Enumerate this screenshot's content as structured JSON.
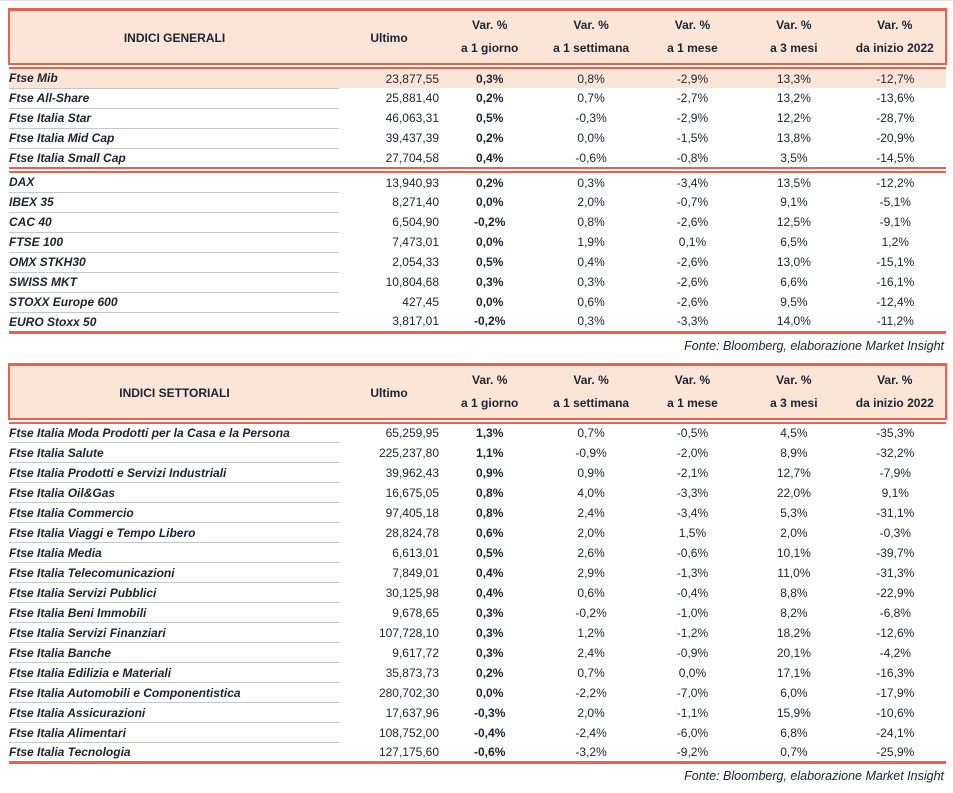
{
  "columns": {
    "ultimo": "Ultimo",
    "var_label": "Var. %",
    "periods": [
      "a 1 giorno",
      "a 1 settimana",
      "a 1 mese",
      "a 3 mesi",
      "da inizio 2022"
    ]
  },
  "footer": {
    "text": "Fonte: Bloomberg, elaborazione Market Insight"
  },
  "colors": {
    "accent_salmon": "#ec614b",
    "header_peach": "#fbe5d6",
    "text_dark": "#1c2431",
    "row_divider_gray": "#c6c6c6"
  },
  "tables": [
    {
      "title": "INDICI GENERALI",
      "highlight_first_row": true,
      "groups": [
        {
          "rows": [
            [
              "Ftse Mib",
              "23,877,55",
              "0,3%",
              "0,8%",
              "-2,9%",
              "13,3%",
              "-12,7%"
            ],
            [
              "Ftse All-Share",
              "25,881,40",
              "0,2%",
              "0,7%",
              "-2,7%",
              "13,2%",
              "-13,6%"
            ],
            [
              "Ftse Italia Star",
              "46,063,31",
              "0,5%",
              "-0,3%",
              "-2,9%",
              "12,2%",
              "-28,7%"
            ],
            [
              "Ftse Italia Mid Cap",
              "39,437,39",
              "0,2%",
              "0,0%",
              "-1,5%",
              "13,8%",
              "-20,9%"
            ],
            [
              "Ftse Italia Small Cap",
              "27,704,58",
              "0,4%",
              "-0,6%",
              "-0,8%",
              "3,5%",
              "-14,5%"
            ]
          ]
        },
        {
          "rows": [
            [
              "DAX",
              "13,940,93",
              "0,2%",
              "0,3%",
              "-3,4%",
              "13,5%",
              "-12,2%"
            ],
            [
              "IBEX 35",
              "8,271,40",
              "0,0%",
              "2,0%",
              "-0,7%",
              "9,1%",
              "-5,1%"
            ],
            [
              "CAC 40",
              "6,504,90",
              "-0,2%",
              "0,8%",
              "-2,6%",
              "12,5%",
              "-9,1%"
            ],
            [
              "FTSE 100",
              "7,473,01",
              "0,0%",
              "1,9%",
              "0,1%",
              "6,5%",
              "1,2%"
            ],
            [
              "OMX STKH30",
              "2,054,33",
              "0,5%",
              "0,4%",
              "-2,6%",
              "13,0%",
              "-15,1%"
            ],
            [
              "SWISS MKT",
              "10,804,68",
              "0,3%",
              "0,3%",
              "-2,6%",
              "6,6%",
              "-16,1%"
            ],
            [
              "STOXX Europe 600",
              "427,45",
              "0,0%",
              "0,6%",
              "-2,6%",
              "9,5%",
              "-12,4%"
            ],
            [
              "EURO Stoxx 50",
              "3,817,01",
              "-0,2%",
              "0,3%",
              "-3,3%",
              "14,0%",
              "-11,2%"
            ]
          ]
        }
      ]
    },
    {
      "title": "INDICI SETTORIALI",
      "highlight_first_row": false,
      "groups": [
        {
          "rows": [
            [
              "Ftse Italia Moda Prodotti per la Casa e la Persona",
              "65,259,95",
              "1,3%",
              "0,7%",
              "-0,5%",
              "4,5%",
              "-35,3%"
            ],
            [
              "Ftse Italia Salute",
              "225,237,80",
              "1,1%",
              "-0,9%",
              "-2,0%",
              "8,9%",
              "-32,2%"
            ],
            [
              "Ftse Italia Prodotti e Servizi Industriali",
              "39,962,43",
              "0,9%",
              "0,9%",
              "-2,1%",
              "12,7%",
              "-7,9%"
            ],
            [
              "Ftse Italia Oil&Gas",
              "16,675,05",
              "0,8%",
              "4,0%",
              "-3,3%",
              "22,0%",
              "9,1%"
            ],
            [
              "Ftse Italia Commercio",
              "97,405,18",
              "0,8%",
              "2,4%",
              "-3,4%",
              "5,3%",
              "-31,1%"
            ],
            [
              "Ftse Italia Viaggi e Tempo Libero",
              "28,824,78",
              "0,6%",
              "2,0%",
              "1,5%",
              "2,0%",
              "-0,3%"
            ],
            [
              "Ftse Italia Media",
              "6,613,01",
              "0,5%",
              "2,6%",
              "-0,6%",
              "10,1%",
              "-39,7%"
            ],
            [
              "Ftse Italia Telecomunicazioni",
              "7,849,01",
              "0,4%",
              "2,9%",
              "-1,3%",
              "11,0%",
              "-31,3%"
            ],
            [
              "Ftse Italia Servizi Pubblici",
              "30,125,98",
              "0,4%",
              "0,6%",
              "-0,4%",
              "8,8%",
              "-22,9%"
            ],
            [
              "Ftse Italia Beni Immobili",
              "9,678,65",
              "0,3%",
              "-0,2%",
              "-1,0%",
              "8,2%",
              "-6,8%"
            ],
            [
              "Ftse Italia Servizi Finanziari",
              "107,728,10",
              "0,3%",
              "1,2%",
              "-1,2%",
              "18,2%",
              "-12,6%"
            ],
            [
              "Ftse Italia Banche",
              "9,617,72",
              "0,3%",
              "2,4%",
              "-0,9%",
              "20,1%",
              "-4,2%"
            ],
            [
              "Ftse Italia Edilizia e Materiali",
              "35,873,73",
              "0,2%",
              "0,7%",
              "0,0%",
              "17,1%",
              "-16,3%"
            ],
            [
              "Ftse Italia Automobili e Componentistica",
              "280,702,30",
              "0,0%",
              "-2,2%",
              "-7,0%",
              "6,0%",
              "-17,9%"
            ],
            [
              "Ftse Italia Assicurazioni",
              "17,637,96",
              "-0,3%",
              "2,0%",
              "-1,1%",
              "15,9%",
              "-10,6%"
            ],
            [
              "Ftse Italia Alimentari",
              "108,752,00",
              "-0,4%",
              "-2,4%",
              "-6,0%",
              "6,8%",
              "-24,1%"
            ],
            [
              "Ftse Italia Tecnologia",
              "127,175,60",
              "-0,6%",
              "-3,2%",
              "-9,2%",
              "0,7%",
              "-25,9%"
            ]
          ]
        }
      ]
    }
  ]
}
